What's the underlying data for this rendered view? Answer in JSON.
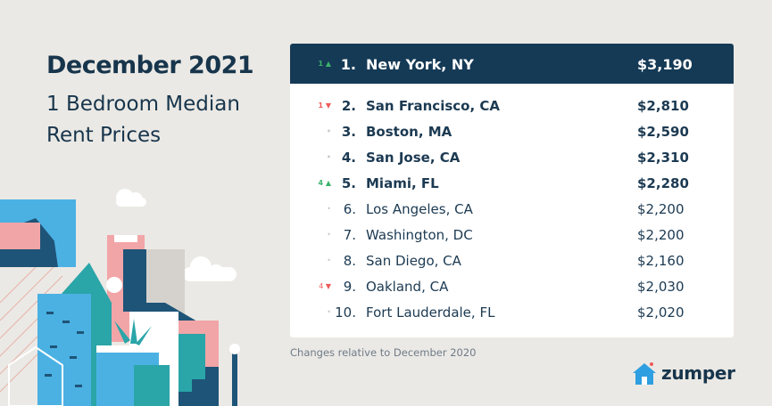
{
  "title": "December 2021",
  "subtitle": "1 Bedroom Median Rent Prices",
  "note": "Changes relative to December 2020",
  "brand": "zumper",
  "colors": {
    "up": "#3bb26b",
    "down": "#ee5a5a",
    "neutral": "#c5c9cd",
    "header_bg": "#153a56"
  },
  "chart_data": {
    "type": "table",
    "columns": [
      "change",
      "rank",
      "city",
      "price"
    ],
    "rows": [
      {
        "change": "1",
        "direction": "up",
        "rank": "1.",
        "city": "New York, NY",
        "price": "$3,190",
        "bold": true
      },
      {
        "change": "1",
        "direction": "down",
        "rank": "2.",
        "city": "San Francisco, CA",
        "price": "$2,810",
        "bold": true
      },
      {
        "change": "",
        "direction": "none",
        "rank": "3.",
        "city": "Boston, MA",
        "price": "$2,590",
        "bold": true
      },
      {
        "change": "",
        "direction": "none",
        "rank": "4.",
        "city": "San Jose, CA",
        "price": "$2,310",
        "bold": true
      },
      {
        "change": "4",
        "direction": "up",
        "rank": "5.",
        "city": "Miami, FL",
        "price": "$2,280",
        "bold": true
      },
      {
        "change": "",
        "direction": "none",
        "rank": "6.",
        "city": "Los Angeles, CA",
        "price": "$2,200",
        "bold": false
      },
      {
        "change": "",
        "direction": "none",
        "rank": "7.",
        "city": "Washington, DC",
        "price": "$2,200",
        "bold": false
      },
      {
        "change": "",
        "direction": "none",
        "rank": "8.",
        "city": "San Diego, CA",
        "price": "$2,160",
        "bold": false
      },
      {
        "change": "4",
        "direction": "down",
        "rank": "9.",
        "city": "Oakland, CA",
        "price": "$2,030",
        "bold": false
      },
      {
        "change": "",
        "direction": "none",
        "rank": "10.",
        "city": "Fort Lauderdale, FL",
        "price": "$2,020",
        "bold": false
      }
    ]
  }
}
